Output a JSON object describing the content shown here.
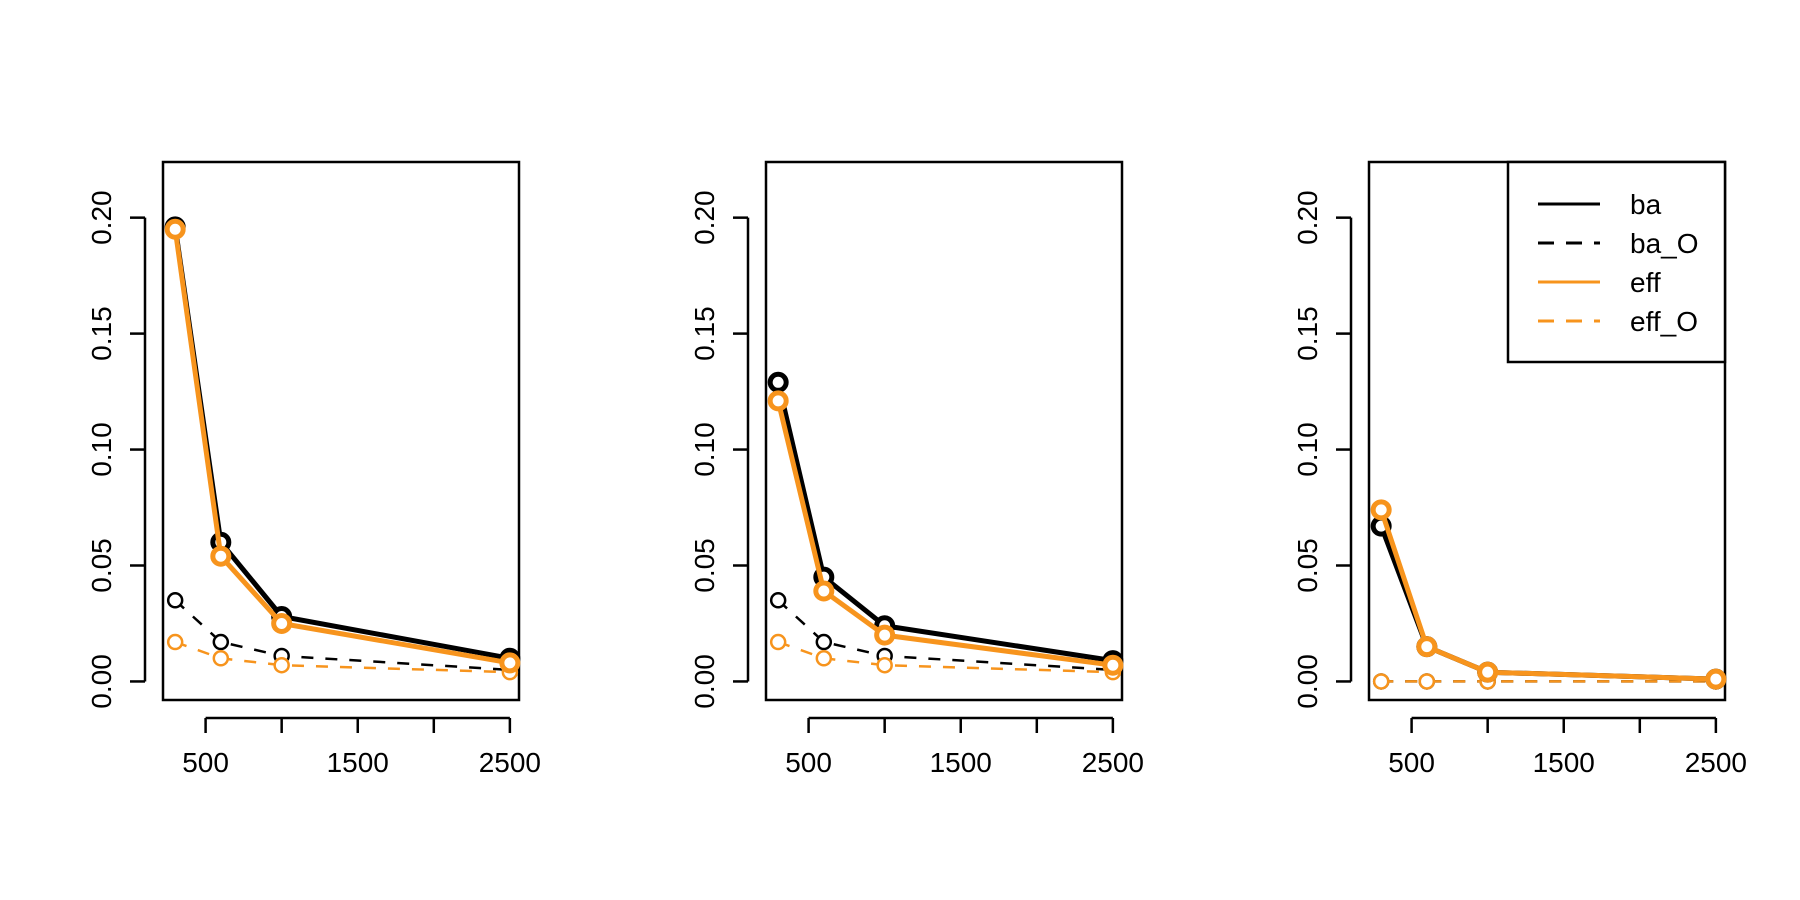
{
  "chart_data": [
    {
      "type": "line",
      "x": [
        300,
        600,
        1000,
        2500
      ],
      "series": [
        {
          "key": "ba",
          "values": [
            0.196,
            0.06,
            0.028,
            0.01
          ]
        },
        {
          "key": "ba_O",
          "values": [
            0.035,
            0.017,
            0.011,
            0.005
          ]
        },
        {
          "key": "eff",
          "values": [
            0.195,
            0.054,
            0.025,
            0.008
          ]
        },
        {
          "key": "eff_O",
          "values": [
            0.017,
            0.01,
            0.007,
            0.004
          ]
        }
      ],
      "xlim": [
        220,
        2560
      ],
      "ylim": [
        -0.008,
        0.224
      ],
      "x_ticks": [
        500,
        1000,
        1500,
        2000,
        2500
      ],
      "x_tick_labels": [
        "500",
        "",
        "1500",
        "",
        "2500"
      ],
      "y_ticks": [
        "0.00",
        "0.05",
        "0.10",
        "0.15",
        "0.20"
      ],
      "legend": false
    },
    {
      "type": "line",
      "x": [
        300,
        600,
        1000,
        2500
      ],
      "series": [
        {
          "key": "ba",
          "values": [
            0.129,
            0.045,
            0.024,
            0.009
          ]
        },
        {
          "key": "ba_O",
          "values": [
            0.035,
            0.017,
            0.011,
            0.005
          ]
        },
        {
          "key": "eff",
          "values": [
            0.121,
            0.039,
            0.02,
            0.007
          ]
        },
        {
          "key": "eff_O",
          "values": [
            0.017,
            0.01,
            0.007,
            0.004
          ]
        }
      ],
      "xlim": [
        220,
        2560
      ],
      "ylim": [
        -0.008,
        0.224
      ],
      "x_ticks": [
        500,
        1000,
        1500,
        2000,
        2500
      ],
      "x_tick_labels": [
        "500",
        "",
        "1500",
        "",
        "2500"
      ],
      "y_ticks": [
        "0.00",
        "0.05",
        "0.10",
        "0.15",
        "0.20"
      ],
      "legend": false
    },
    {
      "type": "line",
      "x": [
        300,
        600,
        1000,
        2500
      ],
      "series": [
        {
          "key": "ba",
          "values": [
            0.067,
            0.015,
            0.004,
            0.001
          ]
        },
        {
          "key": "ba_O",
          "values": [
            0.0,
            0.0,
            0.0,
            0.0
          ]
        },
        {
          "key": "eff",
          "values": [
            0.074,
            0.015,
            0.004,
            0.001
          ]
        },
        {
          "key": "eff_O",
          "values": [
            0.0,
            0.0,
            0.0,
            0.0
          ]
        }
      ],
      "xlim": [
        220,
        2560
      ],
      "ylim": [
        -0.008,
        0.224
      ],
      "x_ticks": [
        500,
        1000,
        1500,
        2000,
        2500
      ],
      "x_tick_labels": [
        "500",
        "",
        "1500",
        "",
        "2500"
      ],
      "y_ticks": [
        "0.00",
        "0.05",
        "0.10",
        "0.15",
        "0.20"
      ],
      "legend": true,
      "legend_position": "top-right"
    }
  ],
  "legend_entries": [
    "ba",
    "ba_O",
    "eff",
    "eff_O"
  ],
  "colors": {
    "black": "#000000",
    "orange": "#f7941d"
  }
}
